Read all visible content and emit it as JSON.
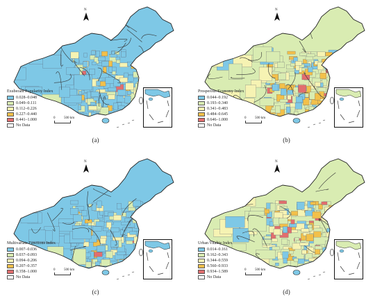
{
  "panels": [
    {
      "id": "a",
      "caption": "(a)",
      "legend_title": "Exuberant Popularity Index",
      "legend": [
        {
          "label": "0.028–0.048",
          "color": "#7ec8e6"
        },
        {
          "label": "0.049–0.111",
          "color": "#d9ecb2"
        },
        {
          "label": "0.112–0.226",
          "color": "#f6f3b3"
        },
        {
          "label": "0.227–0.440",
          "color": "#f2c04a"
        },
        {
          "label": "0.441–1.000",
          "color": "#e26e6e"
        },
        {
          "label": "No Data",
          "color": "#ffffff"
        }
      ],
      "base_color": "#7ec8e6"
    },
    {
      "id": "b",
      "caption": "(b)",
      "legend_title": "Prosperous Economy Index",
      "legend": [
        {
          "label": "0.044–0.192",
          "color": "#7ec8e6"
        },
        {
          "label": "0.193–0.340",
          "color": "#d9ecb2"
        },
        {
          "label": "0.341–0.483",
          "color": "#f6f3b3"
        },
        {
          "label": "0.484–0.645",
          "color": "#f2c04a"
        },
        {
          "label": "0.646–1.000",
          "color": "#e26e6e"
        },
        {
          "label": "No Data",
          "color": "#ffffff"
        }
      ],
      "base_color": "#d9ecb2"
    },
    {
      "id": "c",
      "caption": "(c)",
      "legend_title": "Multivariate Functions Index",
      "legend": [
        {
          "label": "0.007–0.036",
          "color": "#7ec8e6"
        },
        {
          "label": "0.037–0.093",
          "color": "#d9ecb2"
        },
        {
          "label": "0.094–0.206",
          "color": "#f6f3b3"
        },
        {
          "label": "0.207–0.357",
          "color": "#f2c04a"
        },
        {
          "label": "0.358–1.000",
          "color": "#e26e6e"
        },
        {
          "label": "No Data",
          "color": "#ffffff"
        }
      ],
      "base_color": "#7ec8e6"
    },
    {
      "id": "d",
      "caption": "(d)",
      "legend_title": "Urban Vitality Index",
      "legend": [
        {
          "label": "0.014–0.161",
          "color": "#7ec8e6"
        },
        {
          "label": "0.162–0.343",
          "color": "#d9ecb2"
        },
        {
          "label": "0.344–0.559",
          "color": "#f6f3b3"
        },
        {
          "label": "0.560–0.933",
          "color": "#f2c04a"
        },
        {
          "label": "0.934–1.589",
          "color": "#e26e6e"
        },
        {
          "label": "No Data",
          "color": "#ffffff"
        }
      ],
      "base_color": "#d9ecb2"
    }
  ],
  "scale": {
    "zero": "0",
    "distance": "500 km"
  },
  "north_label": "N"
}
